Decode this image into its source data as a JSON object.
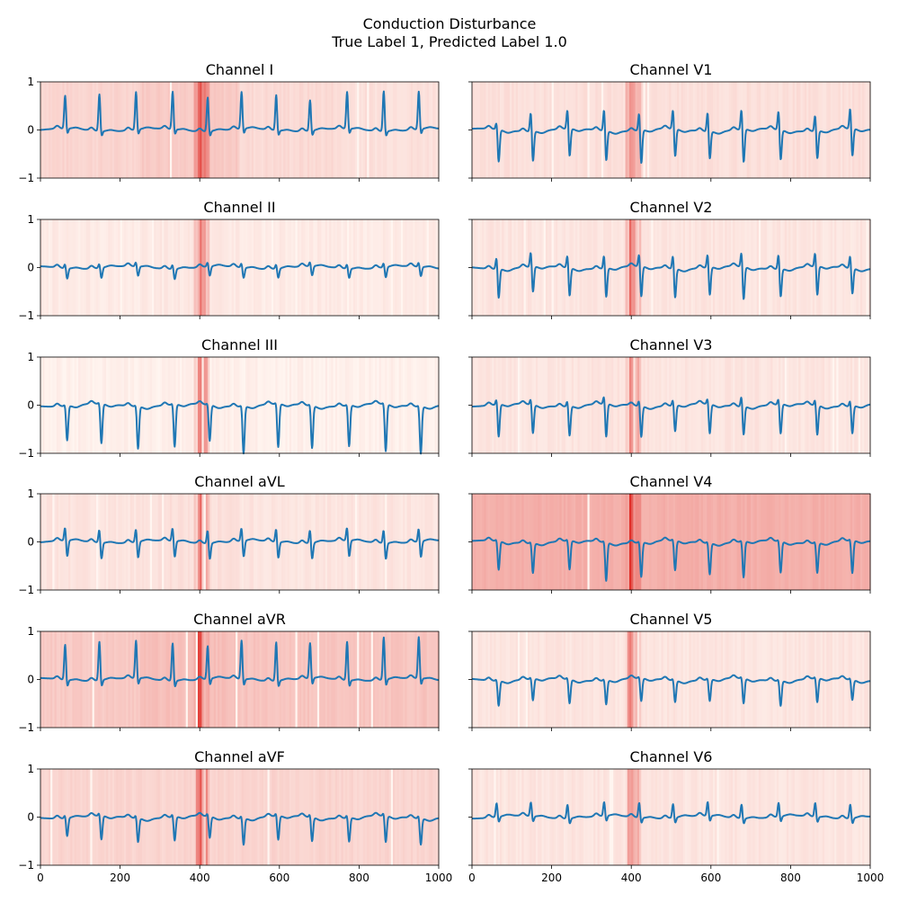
{
  "figure": {
    "title": "Conduction Disturbance",
    "subtitle": "True Label 1, Predicted Label 1.0"
  },
  "colors": {
    "trace": "#1f77b4",
    "heat_low": "#fff5f0",
    "heat_high": "#e0302a"
  },
  "chart_data": {
    "type": "line",
    "xlim": [
      0,
      1000
    ],
    "ylim": [
      -1,
      1
    ],
    "x_ticks": [
      0,
      200,
      400,
      600,
      800,
      1000
    ],
    "y_ticks": [
      -1,
      0,
      1
    ],
    "grid": false,
    "overlay": "attribution heatmap (red shading) behind each trace",
    "panels": [
      {
        "title": "Channel I",
        "beats": [
          62,
          148,
          240,
          332,
          420,
          505,
          592,
          677,
          770,
          862,
          950
        ],
        "r_amp": [
          0.7,
          0.78,
          0.8,
          0.8,
          0.72,
          0.78,
          0.75,
          0.65,
          0.78,
          0.85,
          0.8
        ],
        "s_amp": [
          -0.12,
          -0.12,
          -0.12,
          -0.12,
          -0.12,
          -0.12,
          -0.12,
          -0.12,
          -0.12,
          -0.12,
          -0.12
        ],
        "base": [
          0.7,
          0.6,
          0.75,
          0.8
        ]
      },
      {
        "title": "Channel V1",
        "beats": [
          62,
          148,
          240,
          332,
          420,
          505,
          592,
          677,
          770,
          862,
          950
        ],
        "r_amp": [
          0.18,
          0.45,
          0.45,
          0.5,
          0.42,
          0.45,
          0.45,
          0.48,
          0.45,
          0.38,
          0.48
        ],
        "s_amp": [
          -0.68,
          -0.65,
          -0.6,
          -0.65,
          -0.72,
          -0.6,
          -0.6,
          -0.72,
          -0.65,
          -0.6,
          -0.6
        ],
        "base": [
          0.8,
          0.8,
          0.8,
          0.8
        ]
      },
      {
        "title": "Channel II",
        "beats": [
          62,
          148,
          240,
          332,
          420,
          505,
          592,
          677,
          770,
          862,
          950
        ],
        "r_amp": [
          0.1,
          0.1,
          0.1,
          0.1,
          0.1,
          0.1,
          0.1,
          0.1,
          0.1,
          0.1,
          0.1
        ],
        "s_amp": [
          -0.22,
          -0.22,
          -0.2,
          -0.22,
          -0.2,
          -0.22,
          -0.2,
          -0.2,
          -0.2,
          -0.22,
          -0.2
        ],
        "base": [
          0.9,
          0.88,
          0.9,
          0.9
        ]
      },
      {
        "title": "Channel V2",
        "beats": [
          62,
          148,
          240,
          332,
          420,
          505,
          592,
          677,
          770,
          862,
          950
        ],
        "r_amp": [
          0.28,
          0.35,
          0.3,
          0.32,
          0.3,
          0.32,
          0.32,
          0.35,
          0.35,
          0.33,
          0.3
        ],
        "s_amp": [
          -0.62,
          -0.55,
          -0.6,
          -0.62,
          -0.65,
          -0.62,
          -0.6,
          -0.7,
          -0.6,
          -0.62,
          -0.55
        ],
        "base": [
          0.85,
          0.85,
          0.85,
          0.85
        ]
      },
      {
        "title": "Channel III",
        "beats": [
          62,
          148,
          240,
          332,
          420,
          505,
          592,
          677,
          770,
          862,
          950
        ],
        "r_amp": [
          0.05,
          0.05,
          0.05,
          0.05,
          0.05,
          0.05,
          0.05,
          0.05,
          0.05,
          0.05,
          0.05
        ],
        "s_amp": [
          -0.72,
          -0.82,
          -0.88,
          -0.88,
          -0.75,
          -0.98,
          -0.9,
          -0.88,
          -0.85,
          -0.98,
          -0.98
        ],
        "base": [
          0.95,
          0.95,
          0.95,
          0.95
        ]
      },
      {
        "title": "Channel V3",
        "beats": [
          62,
          148,
          240,
          332,
          420,
          505,
          592,
          677,
          770,
          862,
          950
        ],
        "r_amp": [
          0.15,
          0.15,
          0.15,
          0.2,
          0.15,
          0.15,
          0.15,
          0.25,
          0.15,
          0.15,
          0.15
        ],
        "s_amp": [
          -0.68,
          -0.6,
          -0.62,
          -0.7,
          -0.65,
          -0.55,
          -0.62,
          -0.6,
          -0.62,
          -0.62,
          -0.58
        ],
        "base": [
          0.85,
          0.85,
          0.85,
          0.85
        ]
      },
      {
        "title": "Channel aVL",
        "beats": [
          62,
          148,
          240,
          332,
          420,
          505,
          592,
          677,
          770,
          862,
          950
        ],
        "r_amp": [
          0.3,
          0.3,
          0.3,
          0.3,
          0.3,
          0.3,
          0.3,
          0.3,
          0.3,
          0.3,
          0.3
        ],
        "s_amp": [
          -0.35,
          -0.35,
          -0.35,
          -0.35,
          -0.35,
          -0.35,
          -0.35,
          -0.35,
          -0.35,
          -0.35,
          -0.35
        ],
        "base": [
          0.85,
          0.8,
          0.85,
          0.85
        ]
      },
      {
        "title": "Channel V4",
        "beats": [
          62,
          148,
          240,
          332,
          420,
          505,
          592,
          677,
          770,
          862,
          950
        ],
        "r_amp": [
          0.05,
          0.05,
          0.05,
          0.05,
          0.05,
          0.05,
          0.05,
          0.05,
          0.05,
          0.05,
          0.05
        ],
        "s_amp": [
          -0.6,
          -0.62,
          -0.6,
          -0.8,
          -0.72,
          -0.62,
          -0.65,
          -0.75,
          -0.65,
          -0.62,
          -0.68
        ],
        "base": [
          0.35,
          0.35,
          0.35,
          0.35
        ]
      },
      {
        "title": "Channel aVR",
        "beats": [
          62,
          148,
          240,
          332,
          420,
          505,
          592,
          677,
          770,
          862,
          950
        ],
        "r_amp": [
          0.75,
          0.82,
          0.8,
          0.8,
          0.7,
          0.82,
          0.82,
          0.75,
          0.82,
          0.9,
          0.88
        ],
        "s_amp": [
          -0.15,
          -0.15,
          -0.15,
          -0.15,
          -0.15,
          -0.15,
          -0.15,
          -0.15,
          -0.15,
          -0.15,
          -0.15
        ],
        "base": [
          0.6,
          0.5,
          0.55,
          0.55
        ]
      },
      {
        "title": "Channel V5",
        "beats": [
          62,
          148,
          240,
          332,
          420,
          505,
          592,
          677,
          770,
          862,
          950
        ],
        "r_amp": [
          0.05,
          0.05,
          0.05,
          0.05,
          0.05,
          0.05,
          0.05,
          0.05,
          0.05,
          0.05,
          0.05
        ],
        "s_amp": [
          -0.52,
          -0.45,
          -0.5,
          -0.5,
          -0.48,
          -0.45,
          -0.45,
          -0.52,
          -0.52,
          -0.5,
          -0.42
        ],
        "base": [
          0.85,
          0.85,
          0.85,
          0.85
        ]
      },
      {
        "title": "Channel aVF",
        "beats": [
          62,
          148,
          240,
          332,
          420,
          505,
          592,
          677,
          770,
          862,
          950
        ],
        "r_amp": [
          0.08,
          0.08,
          0.08,
          0.08,
          0.08,
          0.08,
          0.08,
          0.08,
          0.08,
          0.08,
          0.08
        ],
        "s_amp": [
          -0.38,
          -0.5,
          -0.5,
          -0.5,
          -0.45,
          -0.55,
          -0.5,
          -0.5,
          -0.5,
          -0.55,
          -0.55
        ],
        "base": [
          0.7,
          0.7,
          0.7,
          0.7
        ]
      },
      {
        "title": "Channel V6",
        "beats": [
          62,
          148,
          240,
          332,
          420,
          505,
          592,
          677,
          770,
          862,
          950
        ],
        "r_amp": [
          0.3,
          0.3,
          0.3,
          0.3,
          0.32,
          0.3,
          0.3,
          0.3,
          0.3,
          0.3,
          0.3
        ],
        "s_amp": [
          -0.12,
          -0.12,
          -0.12,
          -0.12,
          -0.12,
          -0.12,
          -0.12,
          -0.12,
          -0.12,
          -0.12,
          -0.12
        ],
        "base": [
          0.85,
          0.85,
          0.85,
          0.85
        ]
      }
    ]
  }
}
